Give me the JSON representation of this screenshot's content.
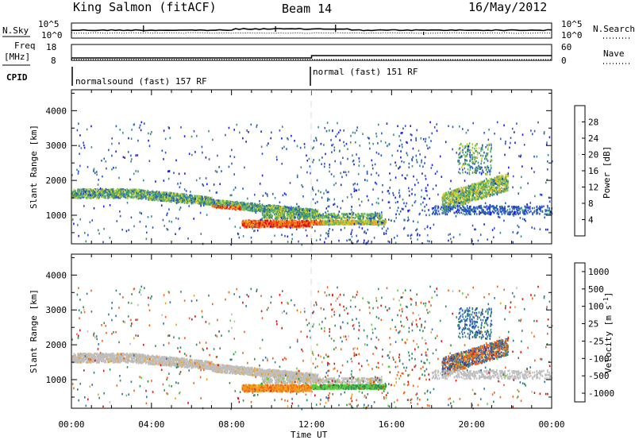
{
  "header": {
    "station": "King Salmon (fitACF)",
    "beam": "Beam 14",
    "date": "16/May/2012"
  },
  "top_panels": {
    "nsky_label": "N.Sky",
    "nsearch_label": "N.Search",
    "noise_ticks_left": [
      "10^5",
      "10^0"
    ],
    "noise_ticks_right": [
      "10^5",
      "10^0"
    ],
    "freq_label_line1": "Freq",
    "freq_label_line2": "[MHz]",
    "freq_ticks": [
      "18",
      "8"
    ],
    "nave_label": "Nave",
    "nave_ticks": [
      "60",
      "0"
    ],
    "cpid_label": "CPID",
    "modes": [
      {
        "text": "normalsound (fast) 157 RF",
        "start_hour": 0
      },
      {
        "text": "normal (fast) 151 RF",
        "start_hour": 12
      }
    ]
  },
  "chart_data": [
    {
      "type": "heatmap",
      "name": "power",
      "xlabel": "Time UT",
      "ylabel": "Slant Range [km]",
      "xlim": [
        0,
        24
      ],
      "ylim": [
        180,
        4600
      ],
      "x_ticks": [
        "00:00",
        "04:00",
        "08:00",
        "12:00",
        "16:00",
        "20:00",
        "00:00"
      ],
      "y_ticks": [
        1000,
        2000,
        3000,
        4000
      ],
      "colorbar": {
        "label": "Power [dB]",
        "ticks": [
          4,
          8,
          12,
          16,
          20,
          24,
          28
        ],
        "range": [
          0,
          30
        ],
        "colors": [
          "#1b1bf0",
          "#2a55c8",
          "#3a8a86",
          "#5fb85a",
          "#d7d22a",
          "#f0a020",
          "#f06018",
          "#e01010"
        ]
      },
      "features": [
        {
          "name": "main_band",
          "t_start": 0.0,
          "t_end": 12.0,
          "range_start_km": 1650,
          "range_end_km": 1100
        },
        {
          "name": "strong_lower_band",
          "t_start": 8.5,
          "t_end": 15.5,
          "range_km": 800,
          "peak_db": 28
        },
        {
          "name": "evening_band",
          "t_start": 18.5,
          "t_end": 21.7,
          "range_km": 1500
        }
      ]
    },
    {
      "type": "heatmap",
      "name": "velocity",
      "xlabel": "Time UT",
      "ylabel": "Slant Range [km]",
      "xlim": [
        0,
        24
      ],
      "ylim": [
        180,
        4600
      ],
      "x_ticks": [
        "00:00",
        "04:00",
        "08:00",
        "12:00",
        "16:00",
        "20:00",
        "00:00"
      ],
      "y_ticks": [
        1000,
        2000,
        3000,
        4000
      ],
      "colorbar": {
        "label_main": "Velocity [m s",
        "label_sup": "-1",
        "label_close": "]",
        "ticks": [
          "1000",
          "500",
          "100",
          "25",
          "-25",
          "-100",
          "-500",
          "-1000"
        ],
        "colors": [
          "#1b3fbf",
          "#2f6fb0",
          "#2e8b57",
          "#5ccf3c",
          "#bebebe",
          "#f0a020",
          "#f06018",
          "#e01010"
        ]
      }
    }
  ]
}
